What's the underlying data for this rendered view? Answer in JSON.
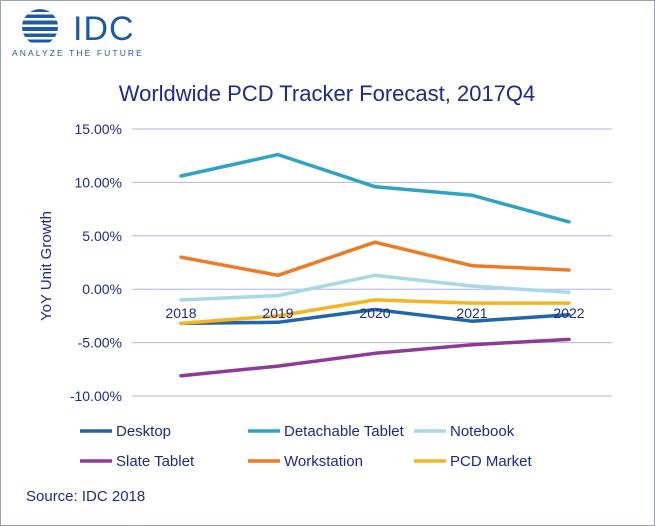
{
  "brand": {
    "name": "IDC",
    "tagline": "ANALYZE THE FUTURE",
    "color": "#1c5aa8"
  },
  "source": "Source: IDC 2018",
  "chart_data": {
    "type": "line",
    "title": "Worldwide PCD Tracker Forecast, 2017Q4",
    "ylabel": "YoY Unit Growth",
    "xlabel": "",
    "x": [
      "2018",
      "2019",
      "2020",
      "2021",
      "2022"
    ],
    "ylim": [
      -10,
      15
    ],
    "yticks": [
      15,
      10,
      5,
      0,
      -5,
      -10
    ],
    "ytick_labels": [
      "15.00%",
      "10.00%",
      "5.00%",
      "0.00%",
      "-5.00%",
      "-10.00%"
    ],
    "grid": "horizontal",
    "legend_position": "bottom",
    "series": [
      {
        "name": "Desktop",
        "color": "#2166a8",
        "values": [
          -3.2,
          -3.1,
          -1.9,
          -3.0,
          -2.4
        ]
      },
      {
        "name": "Detachable Tablet",
        "color": "#2ea3c6",
        "values": [
          10.6,
          12.6,
          9.6,
          8.8,
          6.3
        ]
      },
      {
        "name": "Notebook",
        "color": "#a8d9e6",
        "values": [
          -1.0,
          -0.6,
          1.3,
          0.3,
          -0.3
        ]
      },
      {
        "name": "Slate Tablet",
        "color": "#8e3a96",
        "values": [
          -8.1,
          -7.2,
          -6.0,
          -5.2,
          -4.7
        ]
      },
      {
        "name": "Workstation",
        "color": "#ee7a24",
        "values": [
          3.0,
          1.3,
          4.4,
          2.2,
          1.8
        ]
      },
      {
        "name": "PCD Market",
        "color": "#f4b521",
        "values": [
          -3.2,
          -2.5,
          -1.0,
          -1.3,
          -1.3
        ]
      }
    ]
  }
}
